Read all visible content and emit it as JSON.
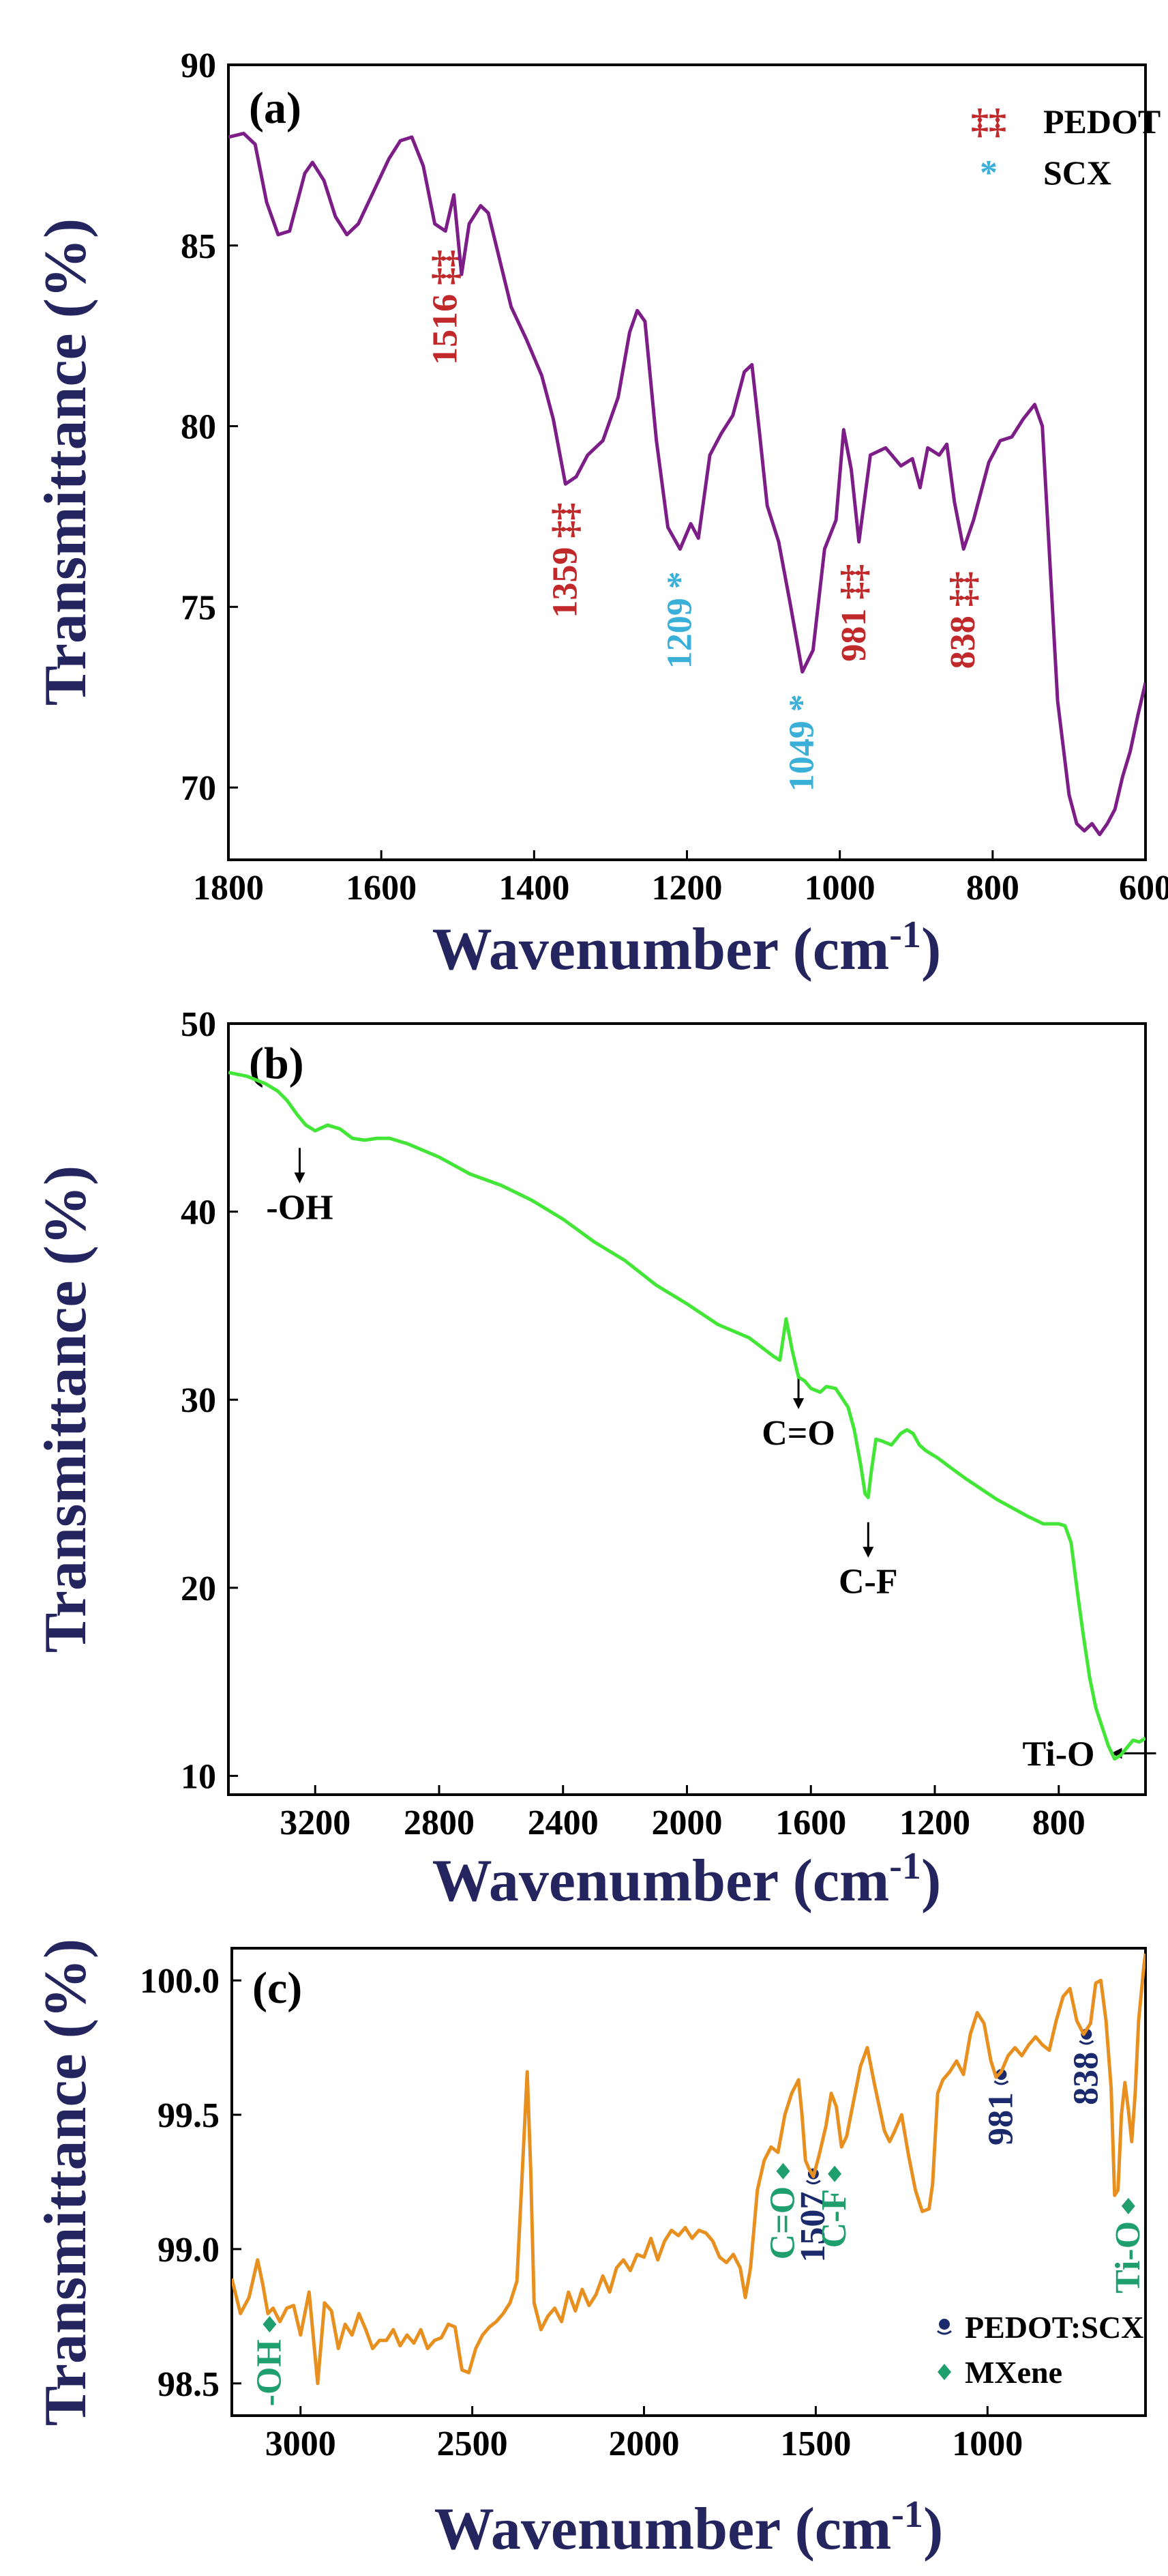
{
  "colors": {
    "axis_title": "#24245e",
    "pedot_annotation": "#c0282a",
    "scx_annotation": "#3ab0d8",
    "mxene_annotation": "#1f9e6e",
    "pedot_scx_marker": "#1a2a6c",
    "series_a": "#7d1d87",
    "series_b": "#43e636",
    "series_c": "#e8901f"
  },
  "chart_data": [
    {
      "panel": "(a)",
      "type": "line",
      "xlabel": "Wavenumber",
      "xunit": "(cm",
      "xunit_sup": "-1",
      "xunit_close": ")",
      "ylabel": "Transmittance (%)",
      "xlim": [
        1800,
        600
      ],
      "ylim": [
        68,
        90
      ],
      "xticks": [
        1800,
        1600,
        1400,
        1200,
        1000,
        800,
        600
      ],
      "yticks": [
        70,
        75,
        80,
        85,
        90
      ],
      "legend": [
        {
          "symbol": "‡‡",
          "label": "PEDOT",
          "color_key": "pedot_annotation"
        },
        {
          "symbol": "*",
          "label": "SCX",
          "color_key": "scx_annotation"
        }
      ],
      "annotations": [
        {
          "text": "1516 ‡‡",
          "x": 1516,
          "y": 85.3,
          "color_key": "pedot_annotation"
        },
        {
          "text": "1359 ‡‡",
          "x": 1359,
          "y": 78.3,
          "color_key": "pedot_annotation"
        },
        {
          "text": "1209 *",
          "x": 1209,
          "y": 76.4,
          "color_key": "scx_annotation"
        },
        {
          "text": "1049 *",
          "x": 1049,
          "y": 73.0,
          "color_key": "scx_annotation"
        },
        {
          "text": "981 ‡‡",
          "x": 981,
          "y": 76.6,
          "color_key": "pedot_annotation"
        },
        {
          "text": "838 ‡‡",
          "x": 838,
          "y": 76.4,
          "color_key": "pedot_annotation"
        }
      ],
      "series": [
        {
          "name": "PEDOT:SCX",
          "x": [
            1800,
            1780,
            1765,
            1750,
            1735,
            1720,
            1700,
            1690,
            1675,
            1660,
            1645,
            1630,
            1610,
            1590,
            1575,
            1560,
            1545,
            1530,
            1516,
            1505,
            1495,
            1485,
            1470,
            1460,
            1445,
            1430,
            1410,
            1390,
            1375,
            1359,
            1345,
            1330,
            1310,
            1290,
            1275,
            1265,
            1255,
            1240,
            1225,
            1209,
            1195,
            1185,
            1170,
            1155,
            1140,
            1125,
            1115,
            1105,
            1095,
            1080,
            1065,
            1049,
            1035,
            1020,
            1005,
            995,
            985,
            975,
            960,
            940,
            920,
            905,
            895,
            885,
            870,
            860,
            850,
            838,
            825,
            805,
            790,
            775,
            760,
            745,
            735,
            725,
            715,
            700,
            690,
            680,
            670,
            660,
            650,
            640,
            630,
            620,
            610,
            600
          ],
          "y": [
            88.0,
            88.1,
            87.8,
            86.2,
            85.3,
            85.4,
            87.0,
            87.3,
            86.8,
            85.8,
            85.3,
            85.6,
            86.5,
            87.4,
            87.9,
            88.0,
            87.2,
            85.6,
            85.4,
            86.4,
            84.2,
            85.6,
            86.1,
            85.9,
            84.6,
            83.3,
            82.4,
            81.4,
            80.2,
            78.4,
            78.6,
            79.2,
            79.6,
            80.8,
            82.6,
            83.2,
            82.9,
            79.6,
            77.2,
            76.6,
            77.3,
            76.9,
            79.2,
            79.8,
            80.3,
            81.5,
            81.7,
            79.8,
            77.8,
            76.8,
            75.1,
            73.2,
            73.8,
            76.6,
            77.4,
            79.9,
            78.8,
            76.8,
            79.2,
            79.4,
            78.9,
            79.1,
            78.3,
            79.4,
            79.2,
            79.5,
            77.9,
            76.6,
            77.4,
            79.0,
            79.6,
            79.7,
            80.2,
            80.6,
            80.0,
            76.2,
            72.4,
            69.8,
            69.0,
            68.8,
            69.0,
            68.7,
            69.0,
            69.4,
            70.3,
            71.0,
            72.0,
            72.9
          ]
        }
      ]
    },
    {
      "panel": "(b)",
      "type": "line",
      "xlabel": "Wavenumber",
      "xunit": "(cm",
      "xunit_sup": "-1",
      "xunit_close": ")",
      "ylabel": "Transmittance (%)",
      "xlim": [
        3480,
        520
      ],
      "ylim": [
        9,
        50
      ],
      "xticks": [
        3200,
        2800,
        2400,
        2000,
        1600,
        1200,
        800
      ],
      "yticks": [
        10,
        20,
        30,
        40,
        50
      ],
      "annotations": [
        {
          "text": "-OH",
          "x": 3250,
          "y": 41.5,
          "arrow": "down"
        },
        {
          "text": "C=O",
          "x": 1640,
          "y": 29.5,
          "arrow": "down"
        },
        {
          "text": "C-F",
          "x": 1415,
          "y": 21.6,
          "arrow": "down"
        },
        {
          "text": "Ti-O",
          "x": 640,
          "y": 11.2,
          "arrow": "left"
        }
      ],
      "series": [
        {
          "name": "MXene",
          "x": [
            3480,
            3420,
            3360,
            3320,
            3290,
            3260,
            3230,
            3200,
            3160,
            3120,
            3080,
            3040,
            3000,
            2960,
            2900,
            2800,
            2700,
            2600,
            2500,
            2400,
            2300,
            2200,
            2100,
            2000,
            1900,
            1800,
            1720,
            1700,
            1680,
            1660,
            1640,
            1620,
            1600,
            1570,
            1550,
            1520,
            1500,
            1480,
            1460,
            1440,
            1425,
            1415,
            1405,
            1390,
            1370,
            1340,
            1310,
            1290,
            1270,
            1250,
            1230,
            1210,
            1190,
            1150,
            1100,
            1000,
            900,
            850,
            800,
            780,
            760,
            740,
            720,
            700,
            680,
            660,
            640,
            620,
            600,
            580,
            560,
            540,
            520
          ],
          "y": [
            47.4,
            47.2,
            46.8,
            46.4,
            45.9,
            45.2,
            44.6,
            44.3,
            44.6,
            44.4,
            43.9,
            43.8,
            43.9,
            43.9,
            43.6,
            42.9,
            42.0,
            41.4,
            40.6,
            39.6,
            38.4,
            37.4,
            36.1,
            35.1,
            34.0,
            33.3,
            32.3,
            32.1,
            34.3,
            32.6,
            31.2,
            31.0,
            30.6,
            30.4,
            30.7,
            30.6,
            30.1,
            29.6,
            28.4,
            26.6,
            25.0,
            24.8,
            26.2,
            27.9,
            27.8,
            27.6,
            28.2,
            28.4,
            28.2,
            27.6,
            27.3,
            27.1,
            26.9,
            26.4,
            25.8,
            24.7,
            23.8,
            23.4,
            23.4,
            23.3,
            22.4,
            19.8,
            17.4,
            15.2,
            13.6,
            12.6,
            11.6,
            10.9,
            11.1,
            11.5,
            11.9,
            11.8,
            12.0
          ]
        }
      ]
    },
    {
      "panel": "(c)",
      "type": "line",
      "xlabel": "Wavenumber",
      "xunit": "(cm",
      "xunit_sup": "-1",
      "xunit_close": ")",
      "ylabel": "Transmittance (%)",
      "xlim": [
        3200,
        540
      ],
      "ylim": [
        98.38,
        100.12
      ],
      "xticks": [
        3000,
        2500,
        2000,
        1500,
        1000
      ],
      "ytick_labels": [
        "98.5",
        "99.0",
        "99.5",
        "100.0"
      ],
      "yticks": [
        98.5,
        99.0,
        99.5,
        100.0
      ],
      "legend": [
        {
          "symbol": "pedot",
          "label": "PEDOT:SCX",
          "color_key": "pedot_scx_marker"
        },
        {
          "symbol": "mxene",
          "label": "MXene",
          "color_key": "mxene_annotation"
        }
      ],
      "annotations": [
        {
          "text": "-OH",
          "x": 3090,
          "y": 98.72,
          "color_key": "mxene_annotation",
          "marker": "mxene"
        },
        {
          "text": "C=O",
          "x": 1595,
          "y": 99.29,
          "color_key": "mxene_annotation",
          "marker": "mxene"
        },
        {
          "text": "1507",
          "x": 1507,
          "y": 99.27,
          "color_key": "pedot_scx_marker",
          "marker": "pedot"
        },
        {
          "text": "C-F",
          "x": 1445,
          "y": 99.28,
          "color_key": "mxene_annotation",
          "marker": "mxene"
        },
        {
          "text": "981",
          "x": 960,
          "y": 99.64,
          "color_key": "pedot_scx_marker",
          "marker": "pedot"
        },
        {
          "text": "838",
          "x": 712,
          "y": 99.79,
          "color_key": "pedot_scx_marker",
          "marker": "pedot"
        },
        {
          "text": "Ti-O",
          "x": 590,
          "y": 99.16,
          "color_key": "mxene_annotation",
          "marker": "mxene"
        }
      ],
      "series": [
        {
          "name": "MXene/PEDOT:SCX",
          "x": [
            3200,
            3175,
            3150,
            3125,
            3110,
            3095,
            3080,
            3060,
            3040,
            3020,
            3000,
            2975,
            2950,
            2930,
            2910,
            2890,
            2870,
            2850,
            2830,
            2810,
            2790,
            2770,
            2750,
            2730,
            2710,
            2690,
            2670,
            2650,
            2630,
            2610,
            2590,
            2570,
            2550,
            2530,
            2510,
            2490,
            2470,
            2450,
            2430,
            2410,
            2390,
            2370,
            2350,
            2340,
            2330,
            2320,
            2300,
            2280,
            2260,
            2240,
            2220,
            2200,
            2180,
            2160,
            2140,
            2120,
            2100,
            2080,
            2060,
            2040,
            2020,
            2000,
            1980,
            1960,
            1940,
            1920,
            1900,
            1880,
            1860,
            1840,
            1820,
            1800,
            1780,
            1760,
            1740,
            1720,
            1705,
            1690,
            1670,
            1650,
            1630,
            1610,
            1590,
            1570,
            1550,
            1540,
            1530,
            1520,
            1507,
            1490,
            1470,
            1455,
            1440,
            1425,
            1410,
            1390,
            1370,
            1350,
            1330,
            1300,
            1285,
            1270,
            1250,
            1230,
            1210,
            1190,
            1170,
            1160,
            1145,
            1130,
            1110,
            1090,
            1070,
            1050,
            1030,
            1010,
            990,
            975,
            960,
            940,
            920,
            900,
            880,
            860,
            840,
            820,
            800,
            780,
            760,
            740,
            720,
            700,
            685,
            670,
            655,
            640,
            630,
            620,
            610,
            600,
            590,
            580,
            570,
            560,
            545,
            540
          ],
          "y": [
            98.89,
            98.76,
            98.82,
            98.96,
            98.87,
            98.76,
            98.78,
            98.73,
            98.78,
            98.79,
            98.68,
            98.84,
            98.5,
            98.8,
            98.77,
            98.63,
            98.72,
            98.68,
            98.76,
            98.7,
            98.63,
            98.66,
            98.66,
            98.7,
            98.64,
            98.68,
            98.65,
            98.7,
            98.63,
            98.66,
            98.67,
            98.72,
            98.71,
            98.55,
            98.54,
            98.63,
            98.68,
            98.71,
            98.73,
            98.76,
            98.8,
            98.88,
            99.4,
            99.66,
            99.3,
            98.8,
            98.7,
            98.75,
            98.78,
            98.73,
            98.84,
            98.77,
            98.85,
            98.79,
            98.83,
            98.9,
            98.84,
            98.93,
            98.96,
            98.92,
            98.98,
            98.97,
            99.04,
            98.96,
            99.03,
            99.07,
            99.05,
            99.08,
            99.04,
            99.07,
            99.06,
            99.03,
            98.97,
            98.95,
            98.98,
            98.93,
            98.82,
            98.93,
            99.22,
            99.33,
            99.38,
            99.36,
            99.5,
            99.58,
            99.63,
            99.5,
            99.33,
            99.3,
            99.27,
            99.35,
            99.46,
            99.58,
            99.53,
            99.38,
            99.42,
            99.55,
            99.68,
            99.75,
            99.62,
            99.44,
            99.4,
            99.44,
            99.5,
            99.35,
            99.22,
            99.14,
            99.15,
            99.24,
            99.58,
            99.63,
            99.66,
            99.7,
            99.65,
            99.8,
            99.88,
            99.84,
            99.7,
            99.64,
            99.66,
            99.72,
            99.75,
            99.72,
            99.76,
            99.79,
            99.76,
            99.74,
            99.85,
            99.94,
            99.97,
            99.85,
            99.8,
            99.84,
            99.99,
            100.0,
            99.85,
            99.6,
            99.2,
            99.22,
            99.5,
            99.62,
            99.52,
            99.4,
            99.58,
            99.85,
            100.05,
            100.1
          ]
        }
      ]
    }
  ]
}
